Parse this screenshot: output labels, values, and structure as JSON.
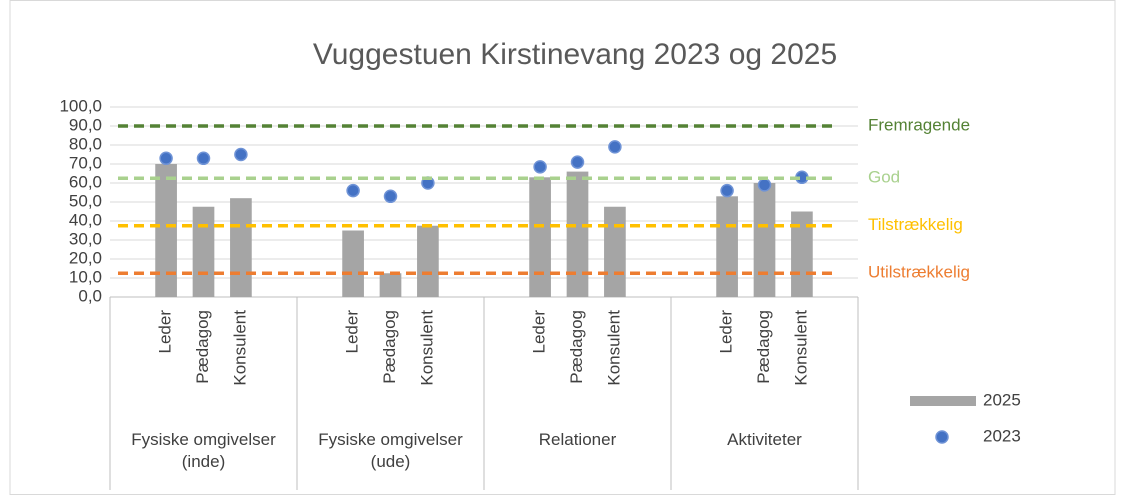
{
  "chart_data": {
    "type": "bar",
    "title": "Vuggestuen Kirstinevang 2023 og 2025",
    "groups": [
      "Fysiske omgivelser (inde)",
      "Fysiske omgivelser (ude)",
      "Relationer",
      "Aktiviteter"
    ],
    "categories": [
      "Leder",
      "Pædagog",
      "Konsulent",
      "Leder",
      "Pædagog",
      "Konsulent",
      "Leder",
      "Pædagog",
      "Konsulent",
      "Leder",
      "Pædagog",
      "Konsulent"
    ],
    "series": [
      {
        "name": "2025",
        "type": "bar",
        "color": "#a5a5a5",
        "values": [
          70,
          47.5,
          52,
          35,
          12.5,
          37.5,
          63,
          66,
          47.5,
          53,
          60,
          45
        ]
      },
      {
        "name": "2023",
        "type": "scatter",
        "color": "#4472c4",
        "values": [
          73,
          73,
          75,
          56,
          53,
          60,
          68.5,
          71,
          79,
          56,
          59,
          63
        ]
      }
    ],
    "reference_lines": [
      {
        "label": "Fremragende",
        "value": 90,
        "color": "#548235"
      },
      {
        "label": "God",
        "value": 62.5,
        "color": "#a9d18e"
      },
      {
        "label": "Tilstrækkelig",
        "value": 37.5,
        "color": "#ffc000"
      },
      {
        "label": "Utilstrækkelig",
        "value": 12.5,
        "color": "#ed7d31"
      }
    ],
    "ylim": [
      0,
      100
    ],
    "yticks": [
      {
        "value": 0,
        "label": "0,0"
      },
      {
        "value": 10,
        "label": "10,0"
      },
      {
        "value": 20,
        "label": "20,0"
      },
      {
        "value": 30,
        "label": "30,0"
      },
      {
        "value": 40,
        "label": "40,0"
      },
      {
        "value": 50,
        "label": "50,0"
      },
      {
        "value": 60,
        "label": "60,0"
      },
      {
        "value": 70,
        "label": "70,0"
      },
      {
        "value": 80,
        "label": "80,0"
      },
      {
        "value": 90,
        "label": "90,0"
      },
      {
        "value": 100,
        "label": "100,0"
      }
    ],
    "grid": true
  }
}
